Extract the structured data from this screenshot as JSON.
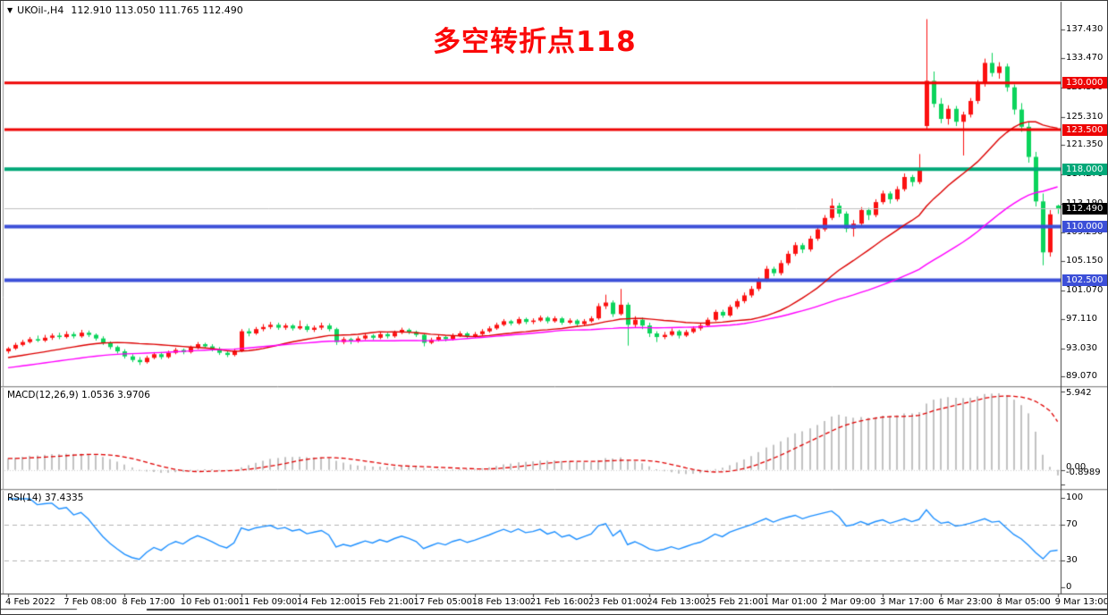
{
  "titlebar": {
    "dropdown_glyph": "▼",
    "symbol_period": "UKOil-,H4",
    "ohlc_text": "112.910 113.050 111.765 112.490"
  },
  "annotation": {
    "text": "多空转折点118",
    "color": "#fb0808"
  },
  "chart_data": {
    "type": "candlestick",
    "symbol": "UKOil-",
    "timeframe": "H4",
    "last_ohlc": {
      "open": 112.91,
      "high": 113.05,
      "low": 111.765,
      "close": 112.49
    },
    "y_axis_ticks": [
      "137.430",
      "133.470",
      "129.390",
      "125.310",
      "121.350",
      "117.270",
      "113.190",
      "109.230",
      "105.150",
      "101.070",
      "97.110",
      "93.030",
      "89.070"
    ],
    "x_labels": [
      "4 Feb 2022",
      "7 Feb 08:00",
      "8 Feb 17:00",
      "10 Feb 01:00",
      "11 Feb 09:00",
      "14 Feb 12:00",
      "15 Feb 21:00",
      "17 Feb 05:00",
      "18 Feb 13:00",
      "21 Feb 16:00",
      "23 Feb 01:00",
      "24 Feb 13:00",
      "25 Feb 21:00",
      "1 Mar 01:00",
      "2 Mar 09:00",
      "3 Mar 17:00",
      "6 Mar 23:00",
      "8 Mar 05:00",
      "9 Mar 13:00"
    ],
    "horizontal_lines": [
      {
        "price": 130.0,
        "label": "130.000",
        "color": "#ee0505",
        "width": 3
      },
      {
        "price": 123.5,
        "label": "123.500",
        "color": "#ee0505",
        "width": 3
      },
      {
        "price": 118.0,
        "label": "118.000",
        "color": "#00a878",
        "width": 4
      },
      {
        "price": 110.0,
        "label": "110.000",
        "color": "#3c4fd8",
        "width": 4
      },
      {
        "price": 102.5,
        "label": "102.500",
        "color": "#3c4fd8",
        "width": 4
      }
    ],
    "current_price": {
      "value": 112.49,
      "label": "112.490",
      "line_color": "#c0c0c0",
      "tag_bg": "#000000"
    },
    "colors": {
      "bull": "#fc1111",
      "bear": "#0bd45c"
    },
    "moving_averages": [
      {
        "name": "ma-fast",
        "period": 20,
        "color": "#dd0000"
      },
      {
        "name": "ma-slow",
        "period": 45,
        "color": "#ff00ff"
      }
    ],
    "ma_prehistory_seed": {
      "count": 60,
      "start": 86.0,
      "end": 92.7
    },
    "macd": {
      "label": "MACD(12,26,9) 1.0536 3.9706",
      "params": [
        12,
        26,
        9
      ],
      "main_value": 1.0536,
      "signal_value": 3.9706,
      "axis_labels": [
        "5.942",
        "0.00",
        "-0.8989"
      ],
      "histogram_color": "#c2c2c2",
      "signal_color": "#e00000"
    },
    "rsi": {
      "label": "RSI(14) 37.4335",
      "period": 14,
      "value": 37.4335,
      "levels": [
        "100",
        "70",
        "30",
        "0"
      ],
      "level_lines": [
        70,
        30
      ],
      "line_color": "#1e90ff"
    },
    "candles_ohlc": [
      [
        92.6,
        93.2,
        92.3,
        93.0
      ],
      [
        93.0,
        93.8,
        92.8,
        93.5
      ],
      [
        93.5,
        94.2,
        93.3,
        93.9
      ],
      [
        93.9,
        94.6,
        93.7,
        94.3
      ],
      [
        94.3,
        94.8,
        93.9,
        94.1
      ],
      [
        94.1,
        94.9,
        93.9,
        94.5
      ],
      [
        94.5,
        95.1,
        94.2,
        94.8
      ],
      [
        94.8,
        95.2,
        94.3,
        94.6
      ],
      [
        94.6,
        95.4,
        94.4,
        95.0
      ],
      [
        95.0,
        95.3,
        94.4,
        94.7
      ],
      [
        94.7,
        95.6,
        94.5,
        95.2
      ],
      [
        95.2,
        95.5,
        94.6,
        94.9
      ],
      [
        94.9,
        95.1,
        94.1,
        94.4
      ],
      [
        94.4,
        94.7,
        93.5,
        93.8
      ],
      [
        93.8,
        94.0,
        92.9,
        93.2
      ],
      [
        93.2,
        93.4,
        92.3,
        92.6
      ],
      [
        92.6,
        92.9,
        91.6,
        91.9
      ],
      [
        91.9,
        92.2,
        91.1,
        91.4
      ],
      [
        91.4,
        91.8,
        90.7,
        91.1
      ],
      [
        91.1,
        92.0,
        90.9,
        91.7
      ],
      [
        91.7,
        92.5,
        91.5,
        92.2
      ],
      [
        92.2,
        92.5,
        91.5,
        91.8
      ],
      [
        91.8,
        92.7,
        91.6,
        92.4
      ],
      [
        92.4,
        93.1,
        92.2,
        92.8
      ],
      [
        92.8,
        93.0,
        92.2,
        92.5
      ],
      [
        92.5,
        93.4,
        92.3,
        93.1
      ],
      [
        93.1,
        93.9,
        92.9,
        93.6
      ],
      [
        93.6,
        93.8,
        93.0,
        93.3
      ],
      [
        93.3,
        93.6,
        92.6,
        92.9
      ],
      [
        92.9,
        93.2,
        92.1,
        92.4
      ],
      [
        92.4,
        92.7,
        91.8,
        92.1
      ],
      [
        92.1,
        93.0,
        91.9,
        92.7
      ],
      [
        92.7,
        95.7,
        92.5,
        95.4
      ],
      [
        95.4,
        95.8,
        94.7,
        95.1
      ],
      [
        95.1,
        96.0,
        94.9,
        95.7
      ],
      [
        95.7,
        96.4,
        95.4,
        96.0
      ],
      [
        96.0,
        96.7,
        95.7,
        96.3
      ],
      [
        96.3,
        96.6,
        95.6,
        95.9
      ],
      [
        95.9,
        96.5,
        95.6,
        96.2
      ],
      [
        96.2,
        96.4,
        95.5,
        95.8
      ],
      [
        95.8,
        96.9,
        95.6,
        96.1
      ],
      [
        96.1,
        96.4,
        95.3,
        95.6
      ],
      [
        95.6,
        96.2,
        95.3,
        95.9
      ],
      [
        95.9,
        96.6,
        95.6,
        96.2
      ],
      [
        96.2,
        96.5,
        95.4,
        95.7
      ],
      [
        95.7,
        95.9,
        93.5,
        93.9
      ],
      [
        93.9,
        94.6,
        93.6,
        94.3
      ],
      [
        94.3,
        94.5,
        93.6,
        94.0
      ],
      [
        94.0,
        94.7,
        93.8,
        94.4
      ],
      [
        94.4,
        95.1,
        94.2,
        94.8
      ],
      [
        94.8,
        95.0,
        94.2,
        94.5
      ],
      [
        94.5,
        95.3,
        94.3,
        95.0
      ],
      [
        95.0,
        95.2,
        94.4,
        94.7
      ],
      [
        94.7,
        95.5,
        94.5,
        95.2
      ],
      [
        95.2,
        95.9,
        95.0,
        95.6
      ],
      [
        95.6,
        95.8,
        95.0,
        95.3
      ],
      [
        95.3,
        95.5,
        94.6,
        94.9
      ],
      [
        94.9,
        95.1,
        93.3,
        93.8
      ],
      [
        93.8,
        94.5,
        93.6,
        94.2
      ],
      [
        94.2,
        94.9,
        94.0,
        94.6
      ],
      [
        94.6,
        94.8,
        94.0,
        94.3
      ],
      [
        94.3,
        95.1,
        94.1,
        94.8
      ],
      [
        94.8,
        95.4,
        94.6,
        95.1
      ],
      [
        95.1,
        95.3,
        94.4,
        94.7
      ],
      [
        94.7,
        95.3,
        94.5,
        95.0
      ],
      [
        95.0,
        95.7,
        94.8,
        95.4
      ],
      [
        95.4,
        96.1,
        95.2,
        95.8
      ],
      [
        95.8,
        96.6,
        95.6,
        96.3
      ],
      [
        96.3,
        97.1,
        96.1,
        96.8
      ],
      [
        96.8,
        97.0,
        96.2,
        96.5
      ],
      [
        96.5,
        97.4,
        96.3,
        97.1
      ],
      [
        97.1,
        97.3,
        96.4,
        96.7
      ],
      [
        96.7,
        97.2,
        96.4,
        96.9
      ],
      [
        96.9,
        97.6,
        96.7,
        97.3
      ],
      [
        97.3,
        97.5,
        96.5,
        96.8
      ],
      [
        96.8,
        97.5,
        96.6,
        97.2
      ],
      [
        97.2,
        97.4,
        96.3,
        96.6
      ],
      [
        96.6,
        97.2,
        96.4,
        96.9
      ],
      [
        96.9,
        97.1,
        96.1,
        96.4
      ],
      [
        96.4,
        97.1,
        96.2,
        96.8
      ],
      [
        96.8,
        97.5,
        96.6,
        97.2
      ],
      [
        97.2,
        99.3,
        97.0,
        98.9
      ],
      [
        98.9,
        100.5,
        98.5,
        99.4
      ],
      [
        99.4,
        99.7,
        97.4,
        97.8
      ],
      [
        97.8,
        101.3,
        97.6,
        99.1
      ],
      [
        99.1,
        99.4,
        93.4,
        96.3
      ],
      [
        96.3,
        97.5,
        95.9,
        97.0
      ],
      [
        97.0,
        97.3,
        95.7,
        96.2
      ],
      [
        96.2,
        96.6,
        94.6,
        95.1
      ],
      [
        95.1,
        95.4,
        93.9,
        94.6
      ],
      [
        94.6,
        95.3,
        94.3,
        94.9
      ],
      [
        94.9,
        95.8,
        94.7,
        95.4
      ],
      [
        95.4,
        95.6,
        94.4,
        94.8
      ],
      [
        94.8,
        95.6,
        94.6,
        95.3
      ],
      [
        95.3,
        96.1,
        95.1,
        95.8
      ],
      [
        95.8,
        96.5,
        95.5,
        96.2
      ],
      [
        96.2,
        97.3,
        96.0,
        97.0
      ],
      [
        97.0,
        98.4,
        96.8,
        98.1
      ],
      [
        98.1,
        98.4,
        97.3,
        97.6
      ],
      [
        97.6,
        99.1,
        97.4,
        98.8
      ],
      [
        98.8,
        99.9,
        98.5,
        99.6
      ],
      [
        99.6,
        100.8,
        99.3,
        100.4
      ],
      [
        100.4,
        101.7,
        100.1,
        101.3
      ],
      [
        101.3,
        102.9,
        101.0,
        102.6
      ],
      [
        102.6,
        104.5,
        102.3,
        104.1
      ],
      [
        104.1,
        104.4,
        103.1,
        103.5
      ],
      [
        103.5,
        105.3,
        103.2,
        104.9
      ],
      [
        104.9,
        106.6,
        104.6,
        106.2
      ],
      [
        106.2,
        107.8,
        105.9,
        107.4
      ],
      [
        107.4,
        107.7,
        106.3,
        106.8
      ],
      [
        106.8,
        108.7,
        106.5,
        108.3
      ],
      [
        108.3,
        110.1,
        108.0,
        109.6
      ],
      [
        109.6,
        111.6,
        109.3,
        111.2
      ],
      [
        111.2,
        113.9,
        110.9,
        112.9
      ],
      [
        112.9,
        113.3,
        111.3,
        111.8
      ],
      [
        111.8,
        112.1,
        109.2,
        109.7
      ],
      [
        109.7,
        110.9,
        108.6,
        110.4
      ],
      [
        110.4,
        112.7,
        110.1,
        112.3
      ],
      [
        112.3,
        112.6,
        110.9,
        111.6
      ],
      [
        111.6,
        113.8,
        111.3,
        113.4
      ],
      [
        113.4,
        115.0,
        113.1,
        114.6
      ],
      [
        114.6,
        114.9,
        113.2,
        113.8
      ],
      [
        113.8,
        115.6,
        113.5,
        115.2
      ],
      [
        115.2,
        117.4,
        114.9,
        116.9
      ],
      [
        116.9,
        117.2,
        115.6,
        116.2
      ],
      [
        116.2,
        120.1,
        115.9,
        117.8
      ],
      [
        124.0,
        138.9,
        123.6,
        130.3
      ],
      [
        130.3,
        131.6,
        126.6,
        127.1
      ],
      [
        127.1,
        127.9,
        124.4,
        125.0
      ],
      [
        125.0,
        126.9,
        124.2,
        126.4
      ],
      [
        126.4,
        126.8,
        124.0,
        124.6
      ],
      [
        124.6,
        126.0,
        119.9,
        125.6
      ],
      [
        125.6,
        127.9,
        125.2,
        127.5
      ],
      [
        127.5,
        130.4,
        127.1,
        129.9
      ],
      [
        129.9,
        133.4,
        129.5,
        132.8
      ],
      [
        132.8,
        134.2,
        130.9,
        131.4
      ],
      [
        131.4,
        132.9,
        130.6,
        132.3
      ],
      [
        132.3,
        132.7,
        128.8,
        129.4
      ],
      [
        129.4,
        129.8,
        125.6,
        126.3
      ],
      [
        126.3,
        127.2,
        123.2,
        123.9
      ],
      [
        123.9,
        124.6,
        118.9,
        119.7
      ],
      [
        119.7,
        120.4,
        112.8,
        113.5
      ],
      [
        113.5,
        114.6,
        104.6,
        106.4
      ],
      [
        106.4,
        112.3,
        105.8,
        111.7
      ],
      [
        112.91,
        113.05,
        111.765,
        112.49
      ]
    ]
  }
}
